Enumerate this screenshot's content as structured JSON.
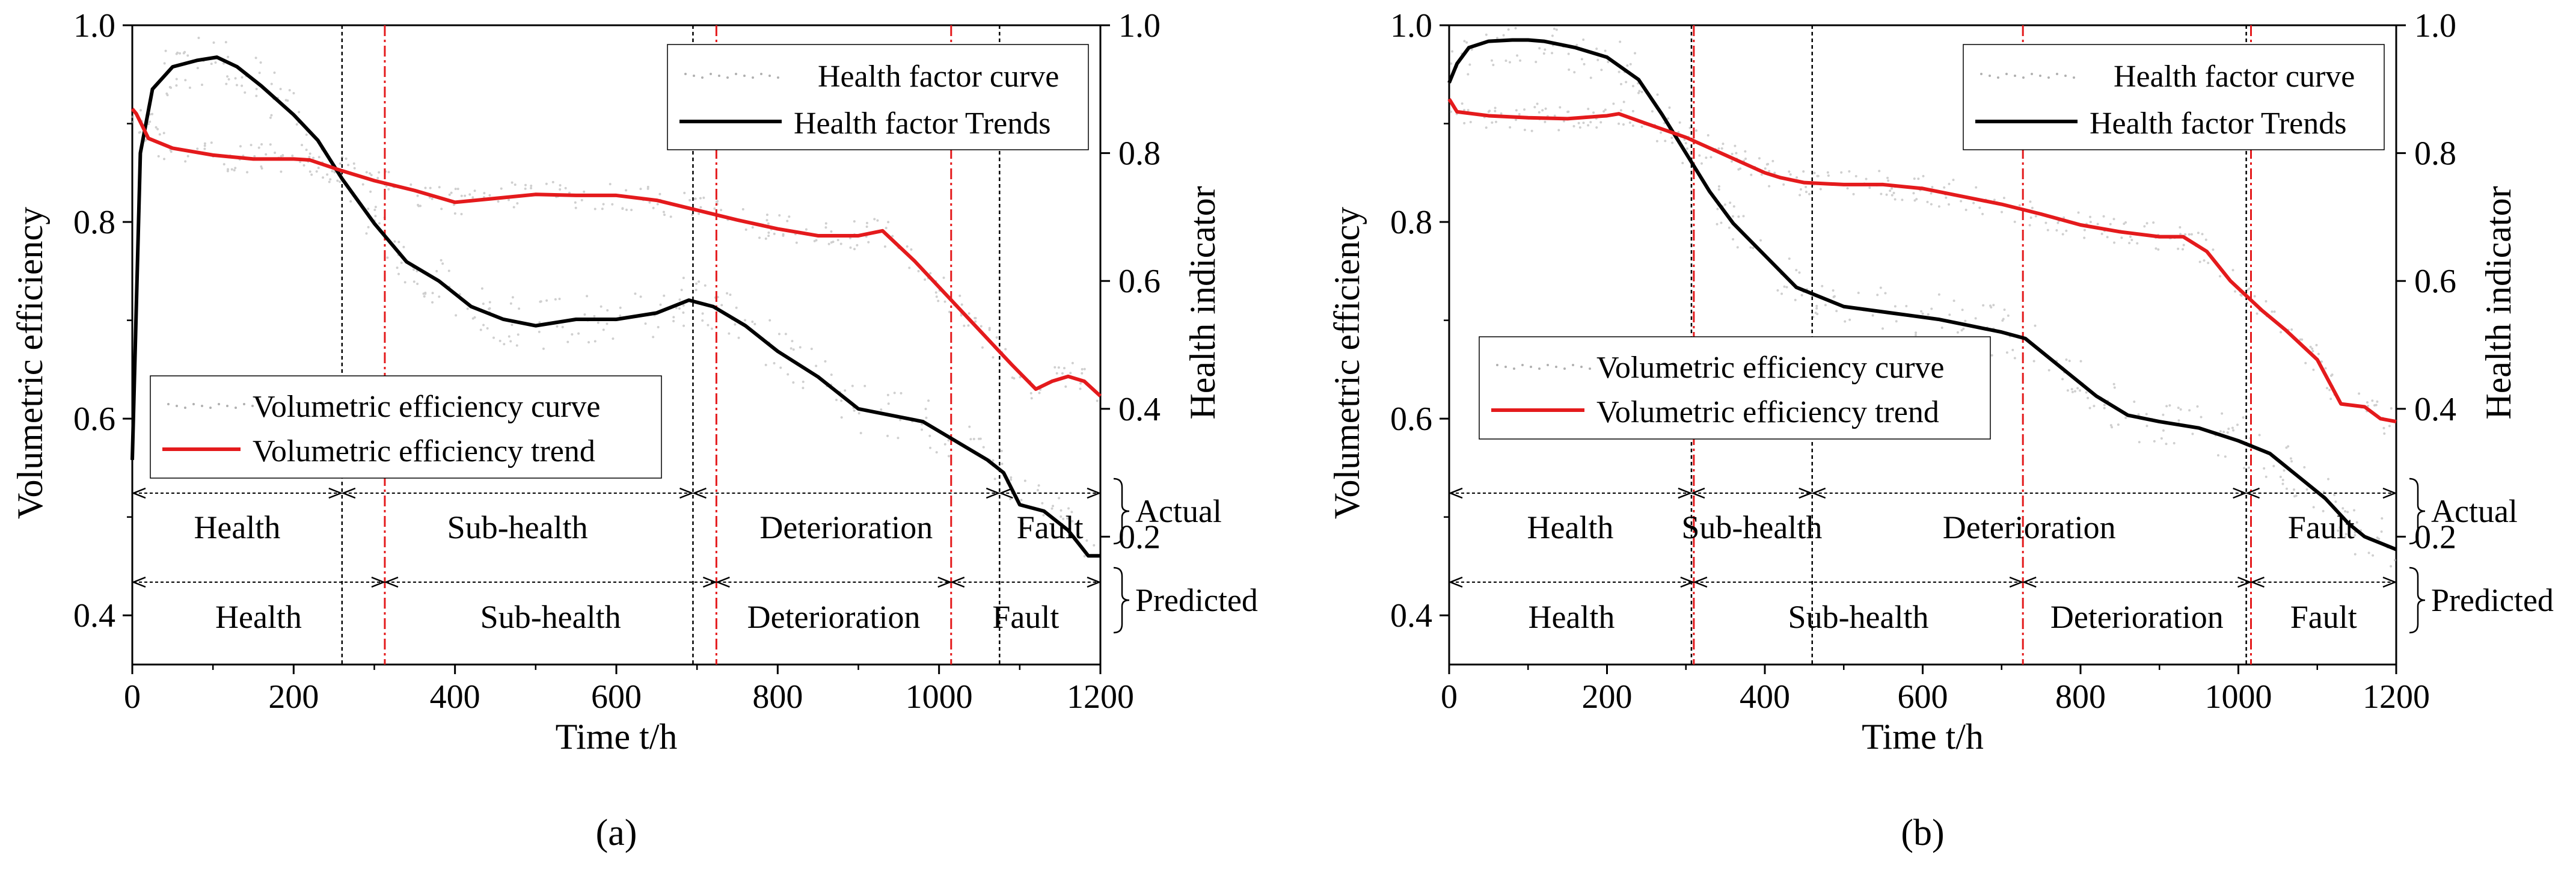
{
  "colors": {
    "health_factor": "#000000",
    "volumetric": "#e41a1c",
    "noise": "#b0b0b0",
    "boundary_actual": "#000000",
    "boundary_predicted": "#e41a1c"
  },
  "chart_data": [
    {
      "type": "line",
      "panel_label": "(a)",
      "xlabel": "Time t/h",
      "ylabel_left": "Volumetric efficiency",
      "ylabel_right": "Health indicator",
      "xlim": [
        0,
        1200
      ],
      "ylim_left": [
        0.35,
        1.0
      ],
      "ylim_right": [
        0.0,
        1.0
      ],
      "x_ticks": [
        0,
        200,
        400,
        600,
        800,
        1000,
        1200
      ],
      "x_tick_labels": [
        "0",
        "200",
        "400",
        "600",
        "800",
        "1000",
        "1200"
      ],
      "y_left_ticks": [
        0.4,
        0.6,
        0.8,
        1.0
      ],
      "y_left_tick_labels": [
        "0.4",
        "0.6",
        "0.8",
        "1.0"
      ],
      "y_right_ticks": [
        0.2,
        0.4,
        0.6,
        0.8,
        1.0
      ],
      "y_right_tick_labels": [
        "0.2",
        "0.4",
        "0.6",
        "0.8",
        "1.0"
      ],
      "legend_top": [
        "Health factor curve",
        "Health factor Trends"
      ],
      "legend_bottom": [
        "Volumetric efficiency curve",
        "Volumetric efficiency trend"
      ],
      "series": [
        {
          "name": "Health factor Trends",
          "axis": "right",
          "x": [
            0,
            10,
            25,
            50,
            80,
            105,
            130,
            160,
            200,
            230,
            260,
            300,
            340,
            380,
            420,
            460,
            500,
            550,
            600,
            650,
            690,
            720,
            760,
            800,
            850,
            900,
            940,
            980,
            1020,
            1060,
            1080,
            1100,
            1130,
            1160,
            1185,
            1200
          ],
          "y": [
            0.32,
            0.8,
            0.9,
            0.935,
            0.945,
            0.95,
            0.935,
            0.905,
            0.86,
            0.82,
            0.76,
            0.69,
            0.63,
            0.6,
            0.56,
            0.54,
            0.53,
            0.54,
            0.54,
            0.55,
            0.57,
            0.56,
            0.53,
            0.49,
            0.45,
            0.4,
            0.39,
            0.38,
            0.35,
            0.32,
            0.3,
            0.25,
            0.24,
            0.21,
            0.17,
            0.17
          ]
        },
        {
          "name": "Volumetric efficiency trend",
          "axis": "left",
          "x": [
            0,
            5,
            20,
            50,
            100,
            150,
            200,
            220,
            260,
            300,
            350,
            400,
            450,
            500,
            550,
            600,
            650,
            700,
            750,
            800,
            850,
            900,
            930,
            970,
            1010,
            1050,
            1090,
            1120,
            1140,
            1160,
            1180,
            1200
          ],
          "y": [
            0.915,
            0.91,
            0.885,
            0.875,
            0.868,
            0.864,
            0.864,
            0.863,
            0.852,
            0.842,
            0.832,
            0.82,
            0.824,
            0.828,
            0.827,
            0.827,
            0.822,
            0.812,
            0.802,
            0.793,
            0.786,
            0.786,
            0.791,
            0.76,
            0.725,
            0.69,
            0.655,
            0.63,
            0.638,
            0.643,
            0.638,
            0.623
          ]
        }
      ],
      "boundaries_actual": [
        260,
        695,
        1075
      ],
      "boundaries_predicted": [
        313,
        724,
        1015
      ],
      "stages_actual": {
        "label": "Actual",
        "names": [
          "Health",
          "Sub-health",
          "Deterioration",
          "Fault"
        ]
      },
      "stages_predicted": {
        "label": "Predicted",
        "names": [
          "Health",
          "Sub-health",
          "Deterioration",
          "Fault"
        ]
      }
    },
    {
      "type": "line",
      "panel_label": "(b)",
      "xlabel": "Time t/h",
      "ylabel_left": "Volumetric efficiency",
      "ylabel_right": "Health indicator",
      "xlim": [
        0,
        1200
      ],
      "ylim_left": [
        0.35,
        1.0
      ],
      "ylim_right": [
        0.0,
        1.0
      ],
      "x_ticks": [
        0,
        200,
        400,
        600,
        800,
        1000,
        1200
      ],
      "x_tick_labels": [
        "0",
        "200",
        "400",
        "600",
        "800",
        "1000",
        "1200"
      ],
      "y_left_ticks": [
        0.4,
        0.6,
        0.8,
        1.0
      ],
      "y_left_tick_labels": [
        "0.4",
        "0.6",
        "0.8",
        "1.0"
      ],
      "y_right_ticks": [
        0.2,
        0.4,
        0.6,
        0.8,
        1.0
      ],
      "y_right_tick_labels": [
        "0.2",
        "0.4",
        "0.6",
        "0.8",
        "1.0"
      ],
      "legend_top": [
        "Health factor curve",
        "Health factor Trends"
      ],
      "legend_bottom": [
        "Volumetric efficiency curve",
        "Volumetric efficiency trend"
      ],
      "series": [
        {
          "name": "Health factor Trends",
          "axis": "right",
          "x": [
            0,
            10,
            25,
            50,
            80,
            100,
            120,
            160,
            200,
            240,
            270,
            300,
            330,
            360,
            400,
            440,
            460,
            500,
            560,
            620,
            660,
            700,
            730,
            780,
            820,
            860,
            900,
            950,
            1000,
            1040,
            1080,
            1110,
            1140,
            1160,
            1180,
            1200
          ],
          "y": [
            0.91,
            0.94,
            0.965,
            0.975,
            0.977,
            0.977,
            0.975,
            0.965,
            0.95,
            0.915,
            0.86,
            0.8,
            0.74,
            0.69,
            0.64,
            0.59,
            0.58,
            0.56,
            0.55,
            0.54,
            0.53,
            0.52,
            0.51,
            0.46,
            0.42,
            0.39,
            0.38,
            0.37,
            0.35,
            0.33,
            0.29,
            0.26,
            0.22,
            0.2,
            0.19,
            0.18
          ]
        },
        {
          "name": "Volumetric efficiency trend",
          "axis": "left",
          "x": [
            0,
            10,
            50,
            100,
            150,
            200,
            215,
            250,
            300,
            350,
            400,
            420,
            450,
            500,
            550,
            600,
            650,
            700,
            750,
            800,
            850,
            900,
            930,
            960,
            990,
            1030,
            1060,
            1100,
            1130,
            1160,
            1180,
            1200
          ],
          "y": [
            0.925,
            0.912,
            0.908,
            0.906,
            0.905,
            0.908,
            0.91,
            0.9,
            0.886,
            0.868,
            0.85,
            0.845,
            0.84,
            0.838,
            0.838,
            0.834,
            0.826,
            0.818,
            0.808,
            0.797,
            0.79,
            0.785,
            0.785,
            0.77,
            0.74,
            0.71,
            0.69,
            0.66,
            0.615,
            0.612,
            0.6,
            0.597
          ]
        }
      ],
      "boundaries_actual": [
        307,
        460,
        1010
      ],
      "boundaries_predicted": [
        310,
        727,
        1016
      ],
      "stages_actual": {
        "label": "Actual",
        "names": [
          "Health",
          "Sub-health",
          "Deterioration",
          "Fault"
        ]
      },
      "stages_predicted": {
        "label": "Predicted",
        "names": [
          "Health",
          "Sub-health",
          "Deterioration",
          "Fault"
        ]
      }
    }
  ]
}
